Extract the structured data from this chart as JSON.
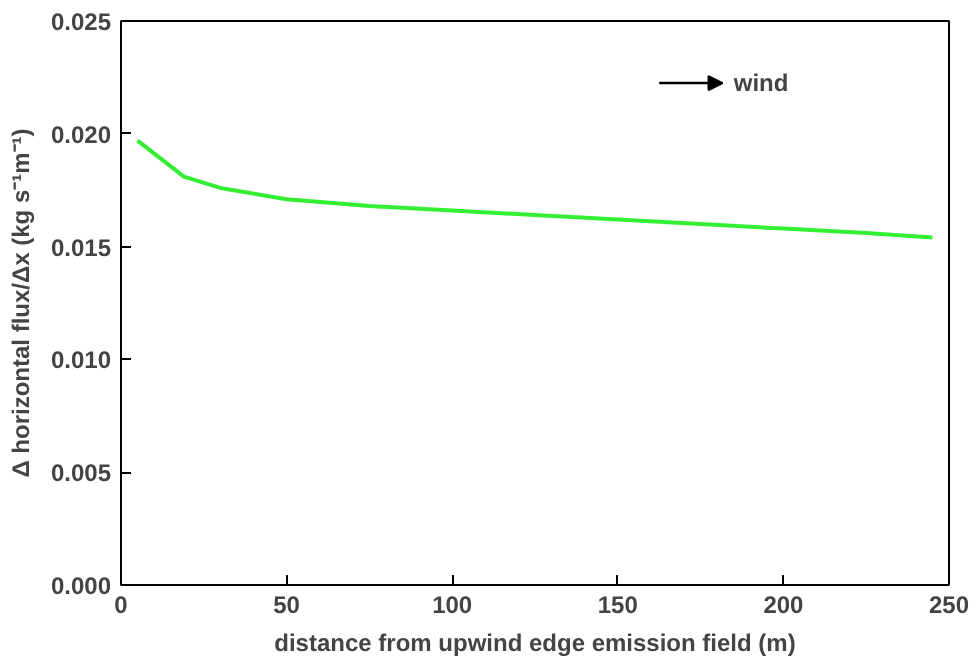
{
  "chart_data": {
    "type": "line",
    "xlabel": "distance from upwind edge emission field (m)",
    "ylabel": "Δ horizontal flux/Δx (kg s⁻¹m⁻¹)",
    "x": [
      5,
      12,
      19,
      30,
      50,
      75,
      100,
      125,
      150,
      175,
      200,
      225,
      245
    ],
    "series": [
      {
        "color": "#33ee33",
        "values": [
          0.0197,
          0.0189,
          0.0181,
          0.0176,
          0.0171,
          0.0168,
          0.0166,
          0.0164,
          0.0162,
          0.016,
          0.0158,
          0.0156,
          0.0154
        ]
      }
    ],
    "xlim": [
      0,
      250
    ],
    "ylim": [
      0,
      0.025
    ],
    "xticks": [
      0,
      50,
      100,
      150,
      200,
      250
    ],
    "yticks": [
      {
        "value": 0,
        "label": "0.000"
      },
      {
        "value": 0.005,
        "label": "0.005"
      },
      {
        "value": 0.01,
        "label": "0.010"
      },
      {
        "value": 0.015,
        "label": "0.015"
      },
      {
        "value": 0.02,
        "label": "0.020"
      },
      {
        "value": 0.025,
        "label": "0.025"
      }
    ],
    "annotations": [
      "wind"
    ],
    "grid": false,
    "marker": "none",
    "line_style": "solid"
  }
}
